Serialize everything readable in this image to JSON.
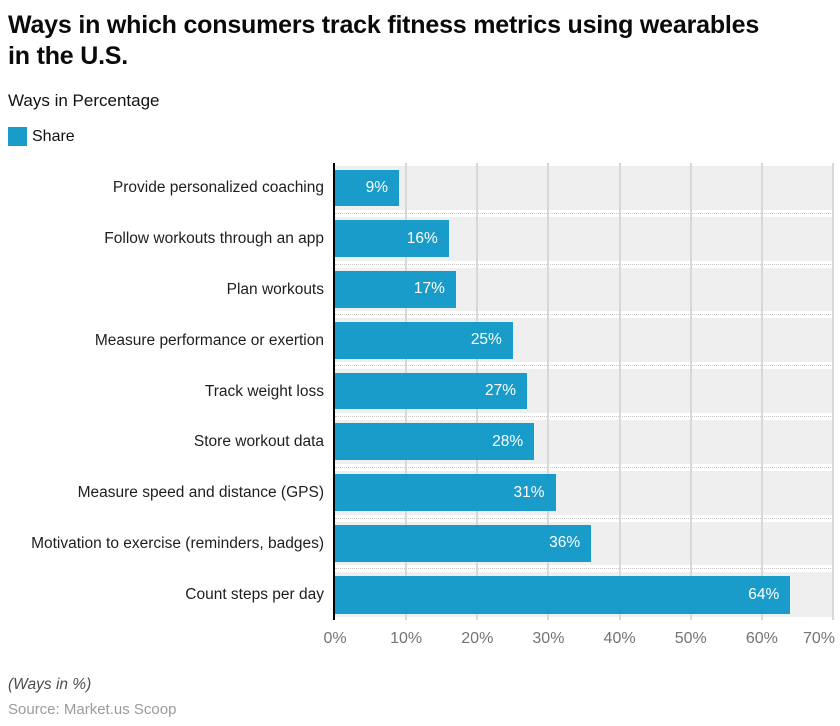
{
  "header": {
    "title": "Ways in which consumers track fitness metrics using wearables in the U.S.",
    "subtitle": "Ways in Percentage"
  },
  "legend": {
    "label": "Share"
  },
  "colors": {
    "bar": "#1a9cca",
    "band_background": "#efefef",
    "vertical_gridline": "#d8d8d8",
    "row_separator_dotted": "#c7c7c7",
    "axis_line": "#000000",
    "tick_text": "#737373",
    "value_text": "#ffffff"
  },
  "chart_data": {
    "type": "bar",
    "orientation": "horizontal",
    "title": "Ways in which consumers track fitness metrics using wearables in the U.S.",
    "subtitle": "Ways in Percentage",
    "series_name": "Share",
    "categories": [
      "Provide personalized coaching",
      "Follow workouts through an app",
      "Plan workouts",
      "Measure performance or exertion",
      "Track weight loss",
      "Store workout data",
      "Measure speed and distance (GPS)",
      "Motivation to exercise (reminders, badges)",
      "Count steps per day"
    ],
    "values": [
      9,
      16,
      17,
      25,
      27,
      28,
      31,
      36,
      64
    ],
    "value_labels": [
      "9%",
      "16%",
      "17%",
      "25%",
      "27%",
      "28%",
      "31%",
      "36%",
      "64%"
    ],
    "xlabel": "",
    "ylabel": "",
    "xlim": [
      0,
      70
    ],
    "x_ticks": [
      "0%",
      "10%",
      "20%",
      "30%",
      "40%",
      "50%",
      "60%",
      "70%"
    ],
    "grid": "vertical solid gridlines every 10%, dotted horizontal row separators",
    "legend_position": "top-left"
  },
  "footer": {
    "note": "(Ways in %)",
    "source": "Source: Market.us Scoop"
  }
}
